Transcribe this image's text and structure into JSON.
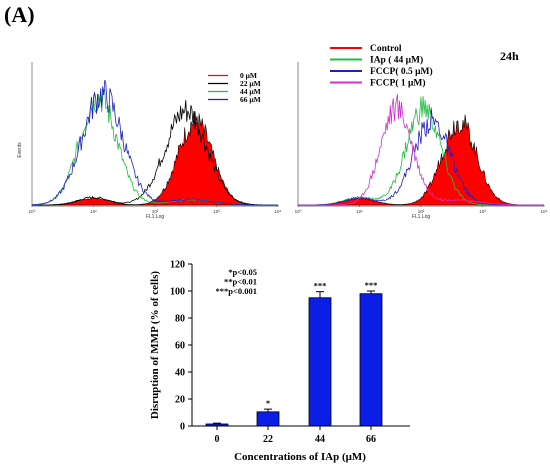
{
  "figure": {
    "panel_label": "(A)",
    "colors": {
      "red": "#ff0000",
      "black": "#000000",
      "green": "#1fbf3f",
      "blue": "#2020c0",
      "magenta": "#cc33cc",
      "bar": "#0a1ee6"
    }
  },
  "chart_data": [
    {
      "type": "area",
      "xlabel": "FL1 Log",
      "ylabel": "Events",
      "xscale": "log",
      "xlim": [
        1,
        10000
      ],
      "xticks": [
        "10⁰",
        "10¹",
        "10²",
        "10³",
        "10⁴"
      ],
      "grid": false,
      "legend_position": "top-right",
      "series": [
        {
          "name": "0 μM",
          "color": "#ff0000",
          "filled": true,
          "peak": 450,
          "sigma": 0.28,
          "height": 0.62
        },
        {
          "name": "22 μM",
          "color": "#000000",
          "filled": false,
          "peak": 320,
          "sigma": 0.34,
          "height": 0.7
        },
        {
          "name": "44 μM",
          "color": "#1fbf3f",
          "filled": false,
          "peak": 12,
          "sigma": 0.3,
          "height": 0.8
        },
        {
          "name": "66 μM",
          "color": "#2020c0",
          "filled": false,
          "peak": 14,
          "sigma": 0.33,
          "height": 0.82
        }
      ]
    },
    {
      "type": "area",
      "xlabel": "FL1 Log",
      "ylabel": "",
      "xscale": "log",
      "xlim": [
        1,
        10000
      ],
      "xticks": [
        "10⁰",
        "10¹",
        "10²",
        "10³",
        "10⁴"
      ],
      "annotation": "24h",
      "grid": false,
      "legend_position": "top-left",
      "series": [
        {
          "name": "Control",
          "color": "#ff0000",
          "filled": true,
          "peak": 420,
          "sigma": 0.28,
          "height": 0.62
        },
        {
          "name": "IAp ( 44 μM)",
          "color": "#1fbf3f",
          "filled": false,
          "peak": 110,
          "sigma": 0.28,
          "height": 0.72
        },
        {
          "name": "FCCP( 0.5 μM)",
          "color": "#2020c0",
          "filled": false,
          "peak": 150,
          "sigma": 0.3,
          "height": 0.62
        },
        {
          "name": "FCCP( 1 μM)",
          "color": "#cc33cc",
          "filled": false,
          "peak": 40,
          "sigma": 0.26,
          "height": 0.72
        }
      ]
    },
    {
      "type": "bar",
      "categories": [
        "0",
        "22",
        "44",
        "66"
      ],
      "values": [
        1.5,
        10.5,
        95,
        98
      ],
      "errors": [
        0.6,
        2.0,
        4.5,
        2.0
      ],
      "significance": [
        "",
        "*",
        "***",
        "***"
      ],
      "xlabel": "Concentrations of IAp (μM)",
      "ylabel": "Disruption of MMP (% of cells)",
      "ylim": [
        0,
        120
      ],
      "yticks": [
        "0",
        "20",
        "40",
        "60",
        "80",
        "100",
        "120"
      ],
      "legend_notes": [
        "*p<0.05",
        "**p<0.01",
        "***p<0.001"
      ]
    }
  ]
}
